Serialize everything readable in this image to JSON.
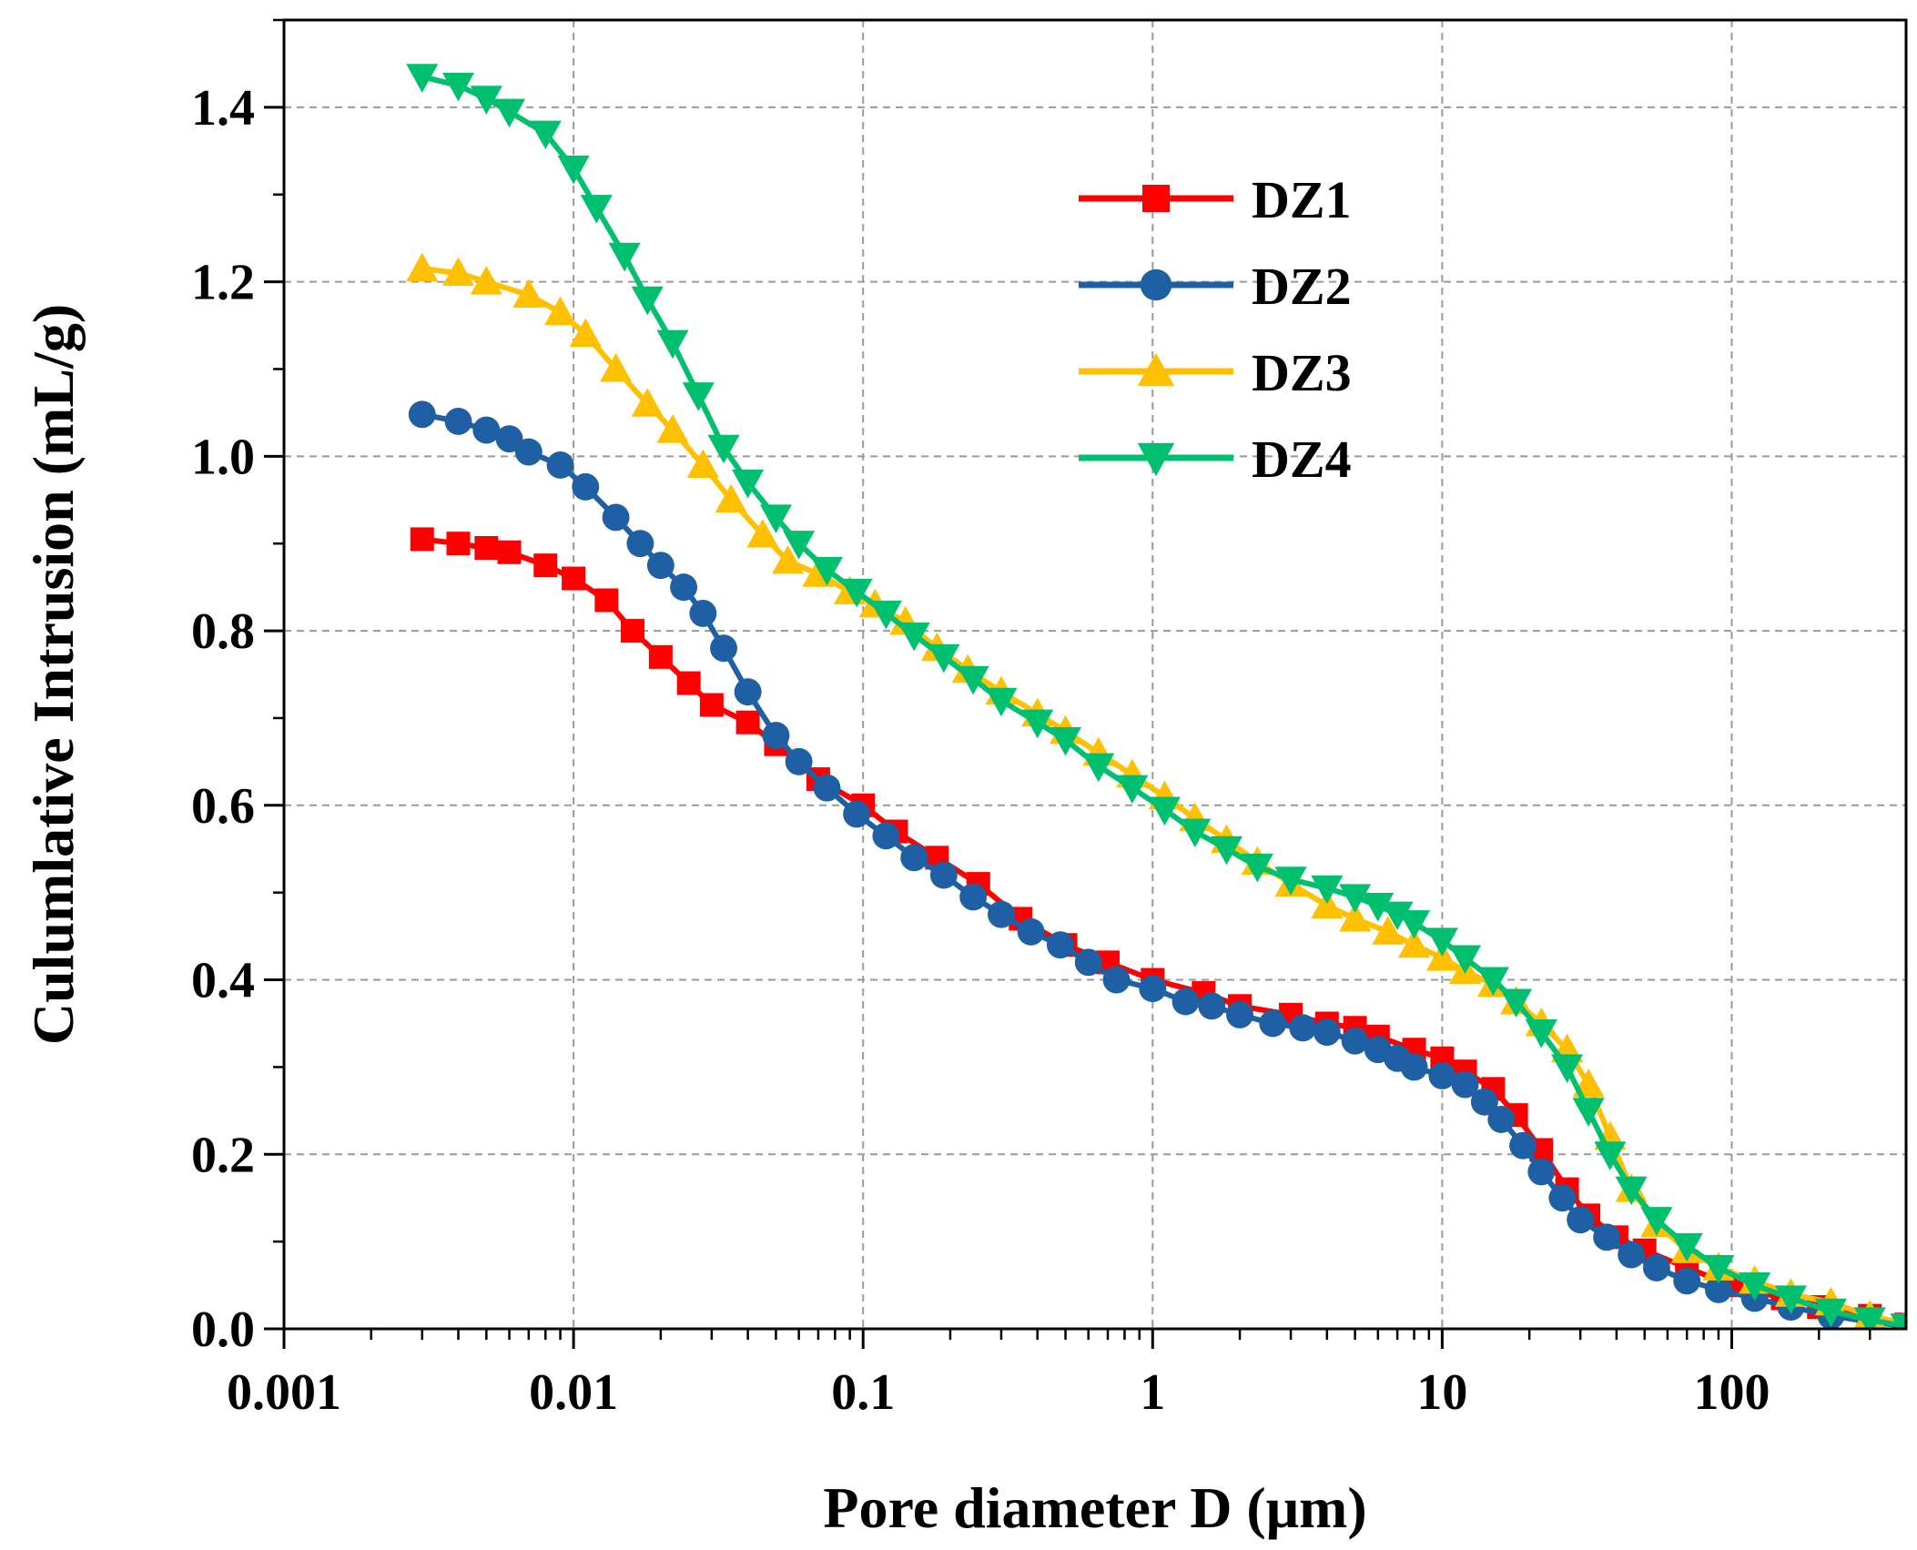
{
  "chart_data": {
    "type": "line",
    "title": "",
    "xlabel": "Pore diameter D (μm)",
    "ylabel": "Culumlative Intrusion (mL/g)",
    "xscale": "log",
    "xlim": [
      0.001,
      400
    ],
    "ylim": [
      0.0,
      1.5
    ],
    "xticks": [
      0.001,
      0.01,
      0.1,
      1,
      10,
      100
    ],
    "xtick_labels": [
      "0.001",
      "0.01",
      "0.1",
      "1",
      "10",
      "100"
    ],
    "yticks": [
      0.0,
      0.2,
      0.4,
      0.6,
      0.8,
      1.0,
      1.2,
      1.4
    ],
    "ytick_labels": [
      "0.0",
      "0.2",
      "0.4",
      "0.6",
      "0.8",
      "1.0",
      "1.2",
      "1.4"
    ],
    "grid": true,
    "legend_position": "top-center",
    "series": [
      {
        "name": "DZ1",
        "color": "#ff0000",
        "marker": "square",
        "x": [
          0.003,
          0.004,
          0.005,
          0.006,
          0.008,
          0.01,
          0.013,
          0.016,
          0.02,
          0.025,
          0.03,
          0.04,
          0.05,
          0.07,
          0.1,
          0.13,
          0.18,
          0.25,
          0.35,
          0.5,
          0.7,
          1,
          1.5,
          2,
          3,
          4,
          5,
          6,
          8,
          10,
          12,
          15,
          18,
          22,
          27,
          32,
          40,
          50,
          70,
          100,
          150,
          200,
          300,
          400
        ],
        "y": [
          0.905,
          0.9,
          0.895,
          0.89,
          0.875,
          0.86,
          0.835,
          0.8,
          0.77,
          0.74,
          0.715,
          0.695,
          0.67,
          0.63,
          0.6,
          0.57,
          0.54,
          0.51,
          0.47,
          0.44,
          0.42,
          0.4,
          0.385,
          0.37,
          0.36,
          0.35,
          0.345,
          0.335,
          0.32,
          0.31,
          0.295,
          0.275,
          0.245,
          0.205,
          0.16,
          0.13,
          0.105,
          0.09,
          0.07,
          0.05,
          0.035,
          0.025,
          0.015,
          0.005
        ]
      },
      {
        "name": "DZ2",
        "color": "#1f5fa3",
        "marker": "circle",
        "x": [
          0.003,
          0.004,
          0.005,
          0.006,
          0.007,
          0.009,
          0.011,
          0.014,
          0.017,
          0.02,
          0.024,
          0.028,
          0.033,
          0.04,
          0.05,
          0.06,
          0.075,
          0.095,
          0.12,
          0.15,
          0.19,
          0.24,
          0.3,
          0.38,
          0.48,
          0.6,
          0.75,
          1,
          1.3,
          1.6,
          2,
          2.6,
          3.3,
          4,
          5,
          6,
          7,
          8,
          10,
          12,
          14,
          16,
          19,
          22,
          26,
          30,
          37,
          45,
          55,
          70,
          90,
          120,
          160,
          220,
          300,
          400
        ],
        "y": [
          1.048,
          1.04,
          1.03,
          1.02,
          1.005,
          0.99,
          0.965,
          0.93,
          0.9,
          0.875,
          0.85,
          0.82,
          0.78,
          0.73,
          0.68,
          0.65,
          0.62,
          0.59,
          0.565,
          0.54,
          0.52,
          0.495,
          0.475,
          0.455,
          0.44,
          0.42,
          0.4,
          0.39,
          0.375,
          0.37,
          0.36,
          0.35,
          0.345,
          0.34,
          0.33,
          0.32,
          0.31,
          0.3,
          0.29,
          0.28,
          0.26,
          0.24,
          0.21,
          0.18,
          0.15,
          0.125,
          0.105,
          0.085,
          0.07,
          0.055,
          0.045,
          0.035,
          0.025,
          0.015,
          0.008,
          0.003
        ]
      },
      {
        "name": "DZ3",
        "color": "#ffc000",
        "marker": "triangle-up",
        "x": [
          0.003,
          0.004,
          0.005,
          0.007,
          0.009,
          0.011,
          0.014,
          0.018,
          0.022,
          0.028,
          0.035,
          0.045,
          0.055,
          0.07,
          0.09,
          0.11,
          0.14,
          0.18,
          0.23,
          0.3,
          0.4,
          0.5,
          0.65,
          0.85,
          1.1,
          1.4,
          1.8,
          2.3,
          3,
          4,
          5,
          6.5,
          8,
          10,
          12,
          15,
          18,
          22,
          27,
          32,
          38,
          45,
          55,
          70,
          90,
          120,
          160,
          220,
          300,
          400
        ],
        "y": [
          1.215,
          1.21,
          1.2,
          1.185,
          1.165,
          1.14,
          1.1,
          1.06,
          1.03,
          0.99,
          0.95,
          0.91,
          0.88,
          0.865,
          0.845,
          0.83,
          0.81,
          0.78,
          0.755,
          0.73,
          0.705,
          0.685,
          0.66,
          0.635,
          0.61,
          0.585,
          0.56,
          0.535,
          0.51,
          0.485,
          0.47,
          0.455,
          0.44,
          0.425,
          0.41,
          0.395,
          0.375,
          0.35,
          0.32,
          0.28,
          0.22,
          0.16,
          0.12,
          0.09,
          0.07,
          0.055,
          0.04,
          0.03,
          0.015,
          0.005
        ]
      },
      {
        "name": "DZ4",
        "color": "#00c070",
        "marker": "triangle-down",
        "x": [
          0.003,
          0.004,
          0.005,
          0.006,
          0.008,
          0.01,
          0.012,
          0.015,
          0.018,
          0.022,
          0.027,
          0.033,
          0.04,
          0.05,
          0.06,
          0.075,
          0.095,
          0.12,
          0.15,
          0.19,
          0.24,
          0.3,
          0.4,
          0.5,
          0.65,
          0.85,
          1.1,
          1.4,
          1.8,
          2.3,
          3,
          4,
          5,
          6,
          7,
          8,
          10,
          12,
          15,
          18,
          22,
          27,
          32,
          38,
          45,
          55,
          70,
          90,
          120,
          160,
          220,
          300,
          400
        ],
        "y": [
          1.435,
          1.425,
          1.41,
          1.395,
          1.37,
          1.33,
          1.285,
          1.23,
          1.18,
          1.13,
          1.07,
          1.01,
          0.97,
          0.93,
          0.9,
          0.87,
          0.845,
          0.82,
          0.795,
          0.77,
          0.745,
          0.72,
          0.695,
          0.675,
          0.645,
          0.62,
          0.595,
          0.57,
          0.55,
          0.53,
          0.515,
          0.505,
          0.495,
          0.485,
          0.475,
          0.465,
          0.445,
          0.425,
          0.4,
          0.375,
          0.34,
          0.3,
          0.25,
          0.2,
          0.16,
          0.125,
          0.095,
          0.07,
          0.05,
          0.035,
          0.02,
          0.01,
          0.003
        ]
      }
    ]
  }
}
